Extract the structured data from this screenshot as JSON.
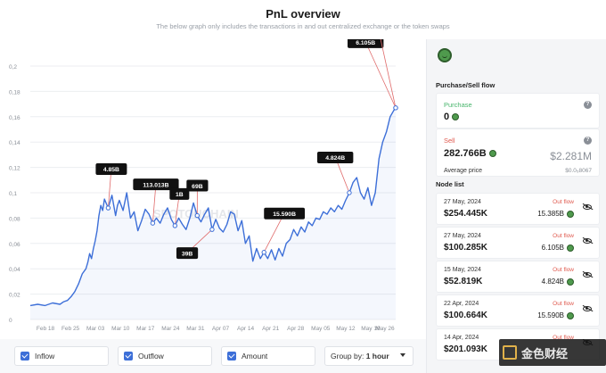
{
  "header": {
    "title": "PnL overview",
    "subtitle": "The below graph only includes the transactions in and out centralized exchange or the token swaps"
  },
  "chart_data": {
    "type": "line",
    "title": "",
    "xlabel": "",
    "ylabel": "",
    "x_ticks": [
      "Feb 18",
      "Feb 25",
      "Mar 03",
      "Mar 10",
      "Mar 17",
      "Mar 24",
      "Mar 31",
      "Apr 07",
      "Apr 14",
      "Apr 21",
      "Apr 28",
      "May 05",
      "May 12",
      "May 19",
      "May 26"
    ],
    "y_ticks": [
      "0",
      "0,02",
      "0,04",
      "0,06",
      "0,08",
      "0,1",
      "0,12",
      "0,14",
      "0,16",
      "0,18",
      "0,2"
    ],
    "ylim": [
      0,
      0.2
    ],
    "color": "#3d6fd8",
    "series": [
      {
        "x": [
          0,
          2,
          4,
          6,
          8,
          9,
          10,
          11,
          12,
          13,
          14,
          15,
          15.5,
          16,
          16.5,
          17,
          17.5,
          18,
          18.5,
          19,
          19.5,
          20,
          21,
          22,
          23,
          23.5,
          24,
          25,
          26,
          27,
          28,
          29,
          30,
          31,
          32,
          33,
          34,
          35,
          36,
          37,
          38,
          39,
          40,
          41,
          42,
          43,
          44,
          45,
          46,
          47,
          48,
          49,
          50,
          51,
          52,
          53,
          54,
          55,
          56,
          57,
          58,
          59,
          60,
          61,
          62,
          63,
          64,
          65,
          66,
          67,
          68,
          69,
          70,
          71,
          72,
          73,
          74,
          75,
          76,
          77,
          78,
          79,
          80,
          81,
          82,
          83,
          84,
          85,
          86,
          87,
          88,
          89,
          90,
          91,
          92,
          93,
          94,
          95,
          96,
          97,
          98,
          98.5
        ],
        "y": [
          0.011,
          0.012,
          0.011,
          0.013,
          0.012,
          0.014,
          0.015,
          0.018,
          0.022,
          0.028,
          0.036,
          0.04,
          0.045,
          0.052,
          0.048,
          0.056,
          0.062,
          0.07,
          0.082,
          0.09,
          0.086,
          0.095,
          0.088,
          0.098,
          0.082,
          0.09,
          0.094,
          0.086,
          0.1,
          0.08,
          0.085,
          0.07,
          0.078,
          0.087,
          0.083,
          0.076,
          0.08,
          0.076,
          0.083,
          0.088,
          0.079,
          0.074,
          0.08,
          0.075,
          0.071,
          0.08,
          0.092,
          0.082,
          0.077,
          0.083,
          0.088,
          0.071,
          0.079,
          0.072,
          0.069,
          0.075,
          0.085,
          0.083,
          0.07,
          0.078,
          0.06,
          0.066,
          0.046,
          0.056,
          0.048,
          0.053,
          0.048,
          0.055,
          0.047,
          0.056,
          0.05,
          0.06,
          0.063,
          0.071,
          0.066,
          0.073,
          0.069,
          0.077,
          0.074,
          0.08,
          0.079,
          0.085,
          0.083,
          0.088,
          0.085,
          0.09,
          0.087,
          0.094,
          0.1,
          0.108,
          0.112,
          0.1,
          0.095,
          0.104,
          0.09,
          0.1,
          0.127,
          0.14,
          0.148,
          0.16,
          0.165,
          0.167
        ]
      }
    ],
    "annotations": [
      "4.85B",
      "113.013B",
      "1B",
      "69B",
      "39B",
      "15.590B",
      "4.824B",
      "6.105B",
      "15.385B"
    ]
  },
  "watermark": {
    "text": "SPOTONCHAIN"
  },
  "controls": {
    "inflow_label": "Inflow",
    "outflow_label": "Outflow",
    "amount_label": "Amount",
    "group_by_label": "Group by:",
    "group_by_value": "1 hour"
  },
  "sidebar": {
    "flow_title": "Purchase/Sell flow",
    "purchase": {
      "label": "Purchase",
      "value": "0"
    },
    "sell": {
      "label": "Sell",
      "value": "282.766B",
      "usd_value": "$2.281M",
      "avg_label": "Average price",
      "avg_value": "$0.0₅8067"
    },
    "node_list_title": "Node list",
    "nodes": [
      {
        "date": "27 May, 2024",
        "usd": "$254.445K",
        "flow": "Out flow",
        "tokens": "15.385B"
      },
      {
        "date": "27 May, 2024",
        "usd": "$100.285K",
        "flow": "Out flow",
        "tokens": "6.105B"
      },
      {
        "date": "15 May, 2024",
        "usd": "$52.819K",
        "flow": "Out flow",
        "tokens": "4.824B"
      },
      {
        "date": "22 Apr, 2024",
        "usd": "$100.664K",
        "flow": "Out flow",
        "tokens": "15.590B"
      },
      {
        "date": "14 Apr, 2024",
        "usd": "$201.093K",
        "flow": "Out flow",
        "tokens": ""
      }
    ]
  },
  "footer_watermark": {
    "text": "金色财经"
  }
}
